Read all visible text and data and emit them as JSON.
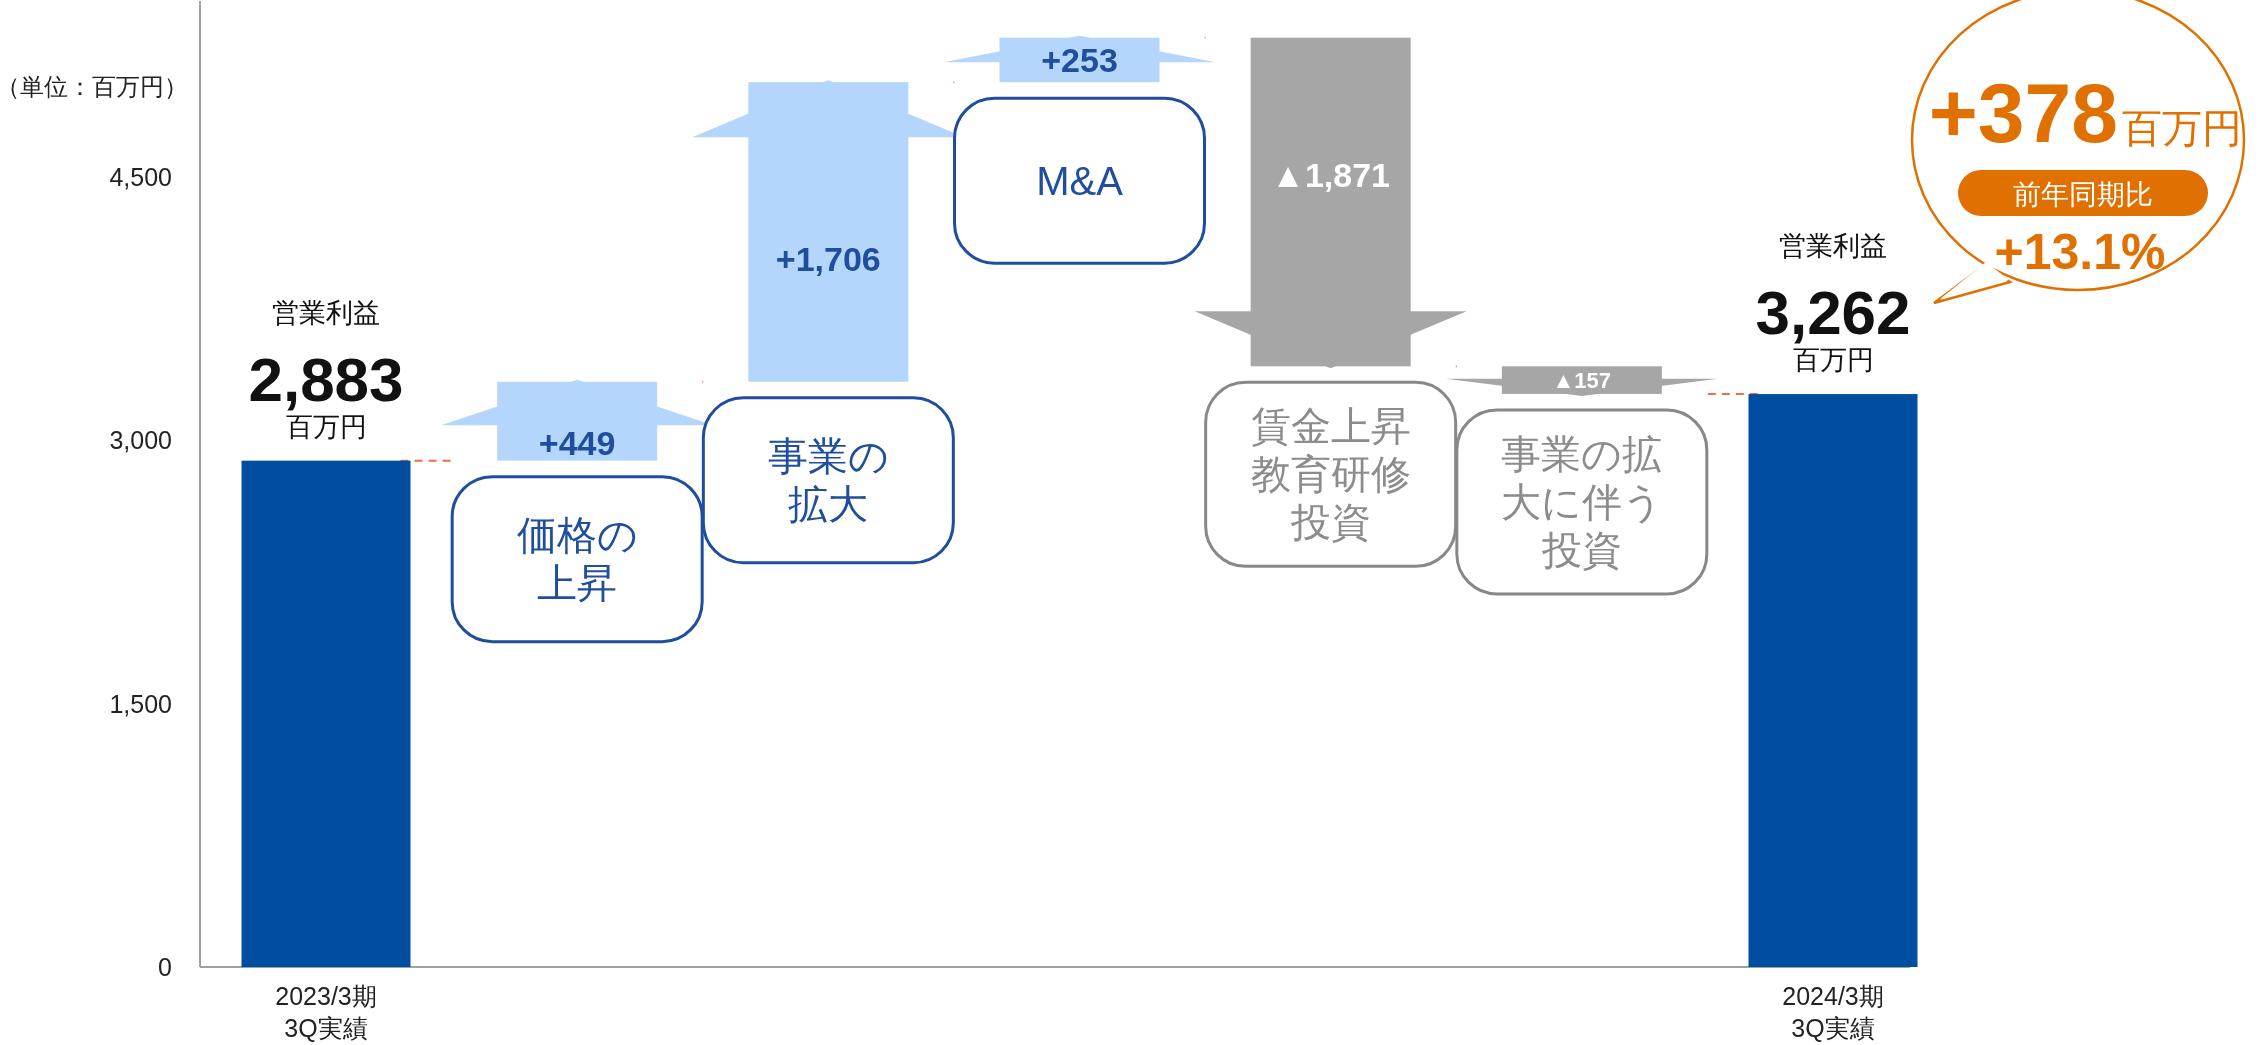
{
  "chart_data": {
    "type": "bar",
    "categories": [
      "2023/3期\n3Q実績",
      "価格の上昇",
      "事業の拡大",
      "M&A",
      "賃金上昇教育研修投資",
      "事業の拡大に伴う投資",
      "2024/3期\n3Q実績"
    ],
    "values": [
      2883,
      449,
      1706,
      253,
      -1871,
      -157,
      3262
    ],
    "base": [
      0,
      2883,
      3332,
      5038,
      5291,
      3420,
      0
    ],
    "colors": [
      "#004ea2",
      "#b4d6fc",
      "#b4d6fc",
      "#b4d6fc",
      "#a6a6a6",
      "#a6a6a6",
      "#004ea2"
    ],
    "value_labels": [
      "2,883",
      "+449",
      "+1,706",
      "+253",
      "▲1,871",
      "▲157",
      "3,262"
    ],
    "ylim": [
      0,
      5500
    ],
    "yticks": [
      0,
      {
        "value": 1500,
        "label": "1,500"
      },
      {
        "value": 3000,
        "label": "3,000"
      },
      {
        "value": 4500,
        "label": "4,500"
      }
    ],
    "annotations": [
      "（単位：百万円）",
      "営業利益",
      "百万円",
      "営業利益",
      "百万円",
      "+378",
      "百万円",
      "前年同期比",
      "+13.1%"
    ]
  }
}
